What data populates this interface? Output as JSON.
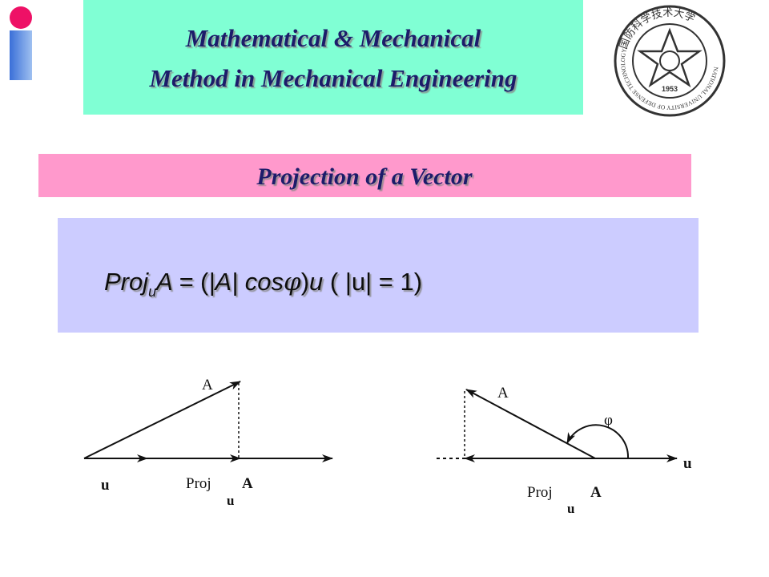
{
  "header": {
    "title_line1": "Mathematical & Mechanical",
    "title_line2": "Method in Mechanical Engineering"
  },
  "logo": {
    "chinese_name": "国防科学技术大学",
    "english_name": "NATIONAL UNIVERSITY OF DEFENSE TECHNOLOGY",
    "year": "1953"
  },
  "section": {
    "title": "Projection of a Vector"
  },
  "formula": [
    "Proj",
    "u",
    "A = ",
    "(",
    "|A| cos",
    "φ",
    ")",
    "u",
    " ( |u| = 1)"
  ],
  "diagram_left": {
    "vector_label": "A",
    "unit_label": "u",
    "proj_label": "Proj",
    "proj_subscript": "u",
    "proj_vector": "A"
  },
  "diagram_right": {
    "vector_label": "A",
    "angle_label": "φ",
    "unit_label": "u",
    "proj_label": "Proj",
    "proj_subscript": "u",
    "proj_vector": "A"
  }
}
